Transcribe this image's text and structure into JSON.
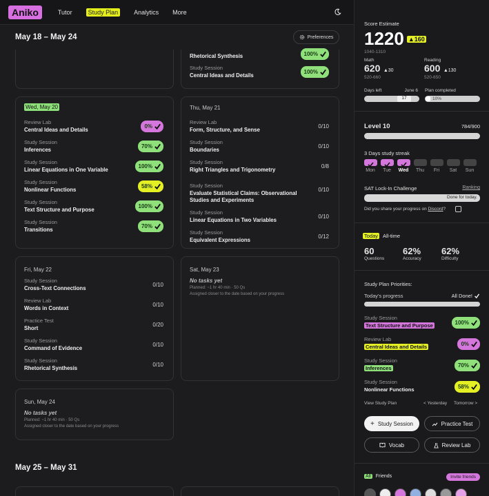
{
  "nav": {
    "logo": "Aniko",
    "links": [
      "Tutor",
      "Study Plan",
      "Analytics",
      "More"
    ]
  },
  "week1": {
    "label": "May 18 – May 24",
    "preferences": "Preferences"
  },
  "week2": {
    "label": "May 25 – May 31"
  },
  "tue": {
    "tasks": [
      {
        "type": "",
        "name": "Rhetorical Synthesis",
        "pct": "100%"
      },
      {
        "type": "Study Session",
        "name": "Central Ideas and Details",
        "pct": "100%"
      }
    ]
  },
  "wed": {
    "date": "Wed, May 20",
    "tasks": [
      {
        "type": "Review Lab",
        "name": "Central Ideas and Details",
        "pct": "0%",
        "color": "pp"
      },
      {
        "type": "Study Session",
        "name": "Inferences",
        "pct": "70%",
        "color": "pg"
      },
      {
        "type": "Study Session",
        "name": "Linear Equations in One Variable",
        "pct": "100%",
        "color": "pg"
      },
      {
        "type": "Study Session",
        "name": "Nonlinear Functions",
        "pct": "58%",
        "color": "py"
      },
      {
        "type": "Study Session",
        "name": "Text Structure and Purpose",
        "pct": "100%",
        "color": "pg"
      },
      {
        "type": "Study Session",
        "name": "Transitions",
        "pct": "70%",
        "color": "pg"
      }
    ]
  },
  "thu": {
    "date": "Thu, May 21",
    "tasks": [
      {
        "type": "Review Lab",
        "name": "Form, Structure, and Sense",
        "count": "0/10"
      },
      {
        "type": "Study Session",
        "name": "Boundaries",
        "count": "0/10"
      },
      {
        "type": "Study Session",
        "name": "Right Triangles and Trigonometry",
        "count": "0/8"
      },
      {
        "type": "Study Session",
        "name": "Evaluate Statistical Claims: Observational Studies and Experiments",
        "count": "0/10"
      },
      {
        "type": "Study Session",
        "name": "Linear Equations in Two Variables",
        "count": "0/10"
      },
      {
        "type": "Study Session",
        "name": "Equivalent Expressions",
        "count": "0/12"
      }
    ]
  },
  "fri": {
    "date": "Fri, May 22",
    "tasks": [
      {
        "type": "Study Session",
        "name": "Cross-Text Connections",
        "count": "0/10"
      },
      {
        "type": "Review Lab",
        "name": "Words in Context",
        "count": "0/10"
      },
      {
        "type": "Practice Test",
        "name": "Short",
        "count": "0/20"
      },
      {
        "type": "Study Session",
        "name": "Command of Evidence",
        "count": "0/10"
      },
      {
        "type": "Study Session",
        "name": "Rhetorical Synthesis",
        "count": "0/10"
      }
    ]
  },
  "sat": {
    "date": "Sat, May 23",
    "notask": "No tasks yet",
    "planned": "Planned: ~1 hr 40 min · 50 Qs",
    "assigned": "Assigned closer to the date based on your progress"
  },
  "sun": {
    "date": "Sun, May 24",
    "notask": "No tasks yet",
    "planned": "Planned: ~1 hr 40 min · 50 Qs",
    "assigned": "Assigned closer to the date based on your progress"
  },
  "score": {
    "label": "Score Estimate",
    "value": "1220",
    "delta": "▲160",
    "range": "1040-1310",
    "math": {
      "label": "Math",
      "value": "620",
      "delta": "▲30",
      "range": "520-660"
    },
    "reading": {
      "label": "Reading",
      "value": "600",
      "delta": "▲130",
      "range": "520-650"
    },
    "days_left_label": "Days left",
    "days_left_date": "June 6",
    "days_left_value": "17",
    "plan_label": "Plan completed",
    "plan_value": "10%"
  },
  "level": {
    "label": "Level 10",
    "xp": "784/900",
    "streak_label": "3 Days study streak",
    "days": [
      "Mon",
      "Tue",
      "Wed",
      "Thu",
      "Fri",
      "Sat",
      "Sun"
    ],
    "challenge": "SAT Lock-In Challenge",
    "ranking": "Ranking",
    "challenge_status": "Done for today.",
    "discord_q": "Did you share your progress on",
    "discord": "Discord",
    "discord_end": "?"
  },
  "stats": {
    "tab_today": "Today",
    "tab_all": "All-time",
    "questions": {
      "value": "60",
      "label": "Questions"
    },
    "accuracy": {
      "value": "62%",
      "label": "Accuracy"
    },
    "difficulty": {
      "value": "62%",
      "label": "Difficulty"
    }
  },
  "priorities": {
    "title": "Study Plan Priorities:",
    "progress_label": "Today's progress",
    "progress_status": "All Done!",
    "items": [
      {
        "type": "Study Session",
        "name": "Text Structure and Purpose",
        "pct": "100%"
      },
      {
        "type": "Review Lab",
        "name": "Central Ideas and Details",
        "pct": "0%"
      },
      {
        "type": "Study Session",
        "name": "Inferences",
        "pct": "70%"
      },
      {
        "type": "Study Session",
        "name": "Nonlinear Functions",
        "pct": "58%"
      }
    ],
    "view": "View Study Plan",
    "yesterday": "< Yesterday",
    "tomorrow": "Tomorrow >",
    "buttons": [
      "Study Session",
      "Practice Test",
      "Vocab",
      "Review Lab"
    ]
  },
  "friends": {
    "badge": "All",
    "label": "Friends",
    "invite": "Invite friends"
  },
  "colors": {
    "green": "#8fe07b",
    "purple": "#d476dc",
    "yellow": "#e4f024",
    "bg": "#1c1c1f"
  }
}
